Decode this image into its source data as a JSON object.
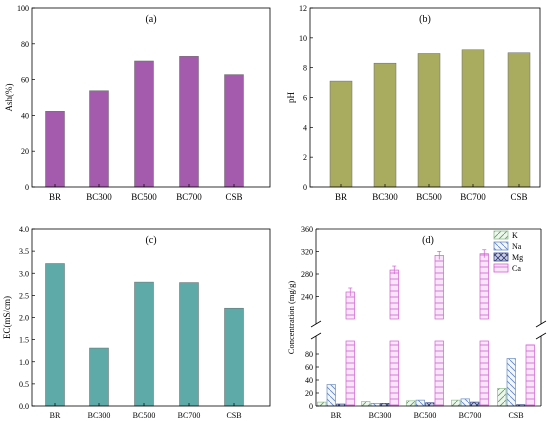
{
  "chart_data": [
    {
      "type": "bar",
      "panel_label": "(a)",
      "categories": [
        "BR",
        "BC300",
        "BC500",
        "BC700",
        "CSB"
      ],
      "values": [
        42.3,
        53.8,
        70.4,
        73.0,
        62.8
      ],
      "ylabel": "Ash(%)",
      "ylim": [
        0,
        100
      ],
      "yticks": [
        "0",
        "20",
        "40",
        "60",
        "80",
        "100"
      ],
      "color": "#a55bad"
    },
    {
      "type": "bar",
      "panel_label": "(b)",
      "categories": [
        "BR",
        "BC300",
        "BC500",
        "BC700",
        "CSB"
      ],
      "values": [
        7.1,
        8.3,
        8.95,
        9.2,
        9.0
      ],
      "ylabel": "pH",
      "ylim": [
        0,
        12
      ],
      "yticks": [
        "0",
        "2",
        "4",
        "6",
        "8",
        "10",
        "12"
      ],
      "color": "#a9ab5e"
    },
    {
      "type": "bar",
      "panel_label": "(c)",
      "categories": [
        "BR",
        "BC300",
        "BC500",
        "BC700",
        "CSB"
      ],
      "values": [
        3.22,
        1.31,
        2.8,
        2.79,
        2.21
      ],
      "ylabel": "EC(mS/cm)",
      "ylim": [
        0,
        4.0
      ],
      "yticks": [
        "0.0",
        "0.5",
        "1.0",
        "1.5",
        "2.0",
        "2.5",
        "3.0",
        "3.5",
        "4.0"
      ],
      "color": "#5eaaa9"
    },
    {
      "type": "bar",
      "panel_label": "(d)",
      "categories": [
        "BR",
        "BC300",
        "BC500",
        "BC700",
        "CSB"
      ],
      "ylabel": "Concentration (mg/g)",
      "axis_break": {
        "lower": [
          0,
          100
        ],
        "upper": [
          200,
          360
        ]
      },
      "yticks_lower": [
        "0",
        "20",
        "40",
        "60",
        "80"
      ],
      "yticks_upper": [
        "240",
        "280",
        "320",
        "360"
      ],
      "legend_position": "top-right",
      "series": [
        {
          "name": "K",
          "values": [
            6,
            7,
            8,
            9,
            27
          ],
          "color": "#8fbf8f"
        },
        {
          "name": "Na",
          "values": [
            33,
            4,
            9,
            11,
            73
          ],
          "color": "#6b8fc4"
        },
        {
          "name": "Mg",
          "values": [
            3,
            4,
            5,
            6,
            2
          ],
          "color": "#3a4a8a"
        },
        {
          "name": "Ca",
          "values": [
            248,
            287,
            313,
            316,
            94
          ],
          "color": "#d25ed2"
        }
      ]
    }
  ]
}
